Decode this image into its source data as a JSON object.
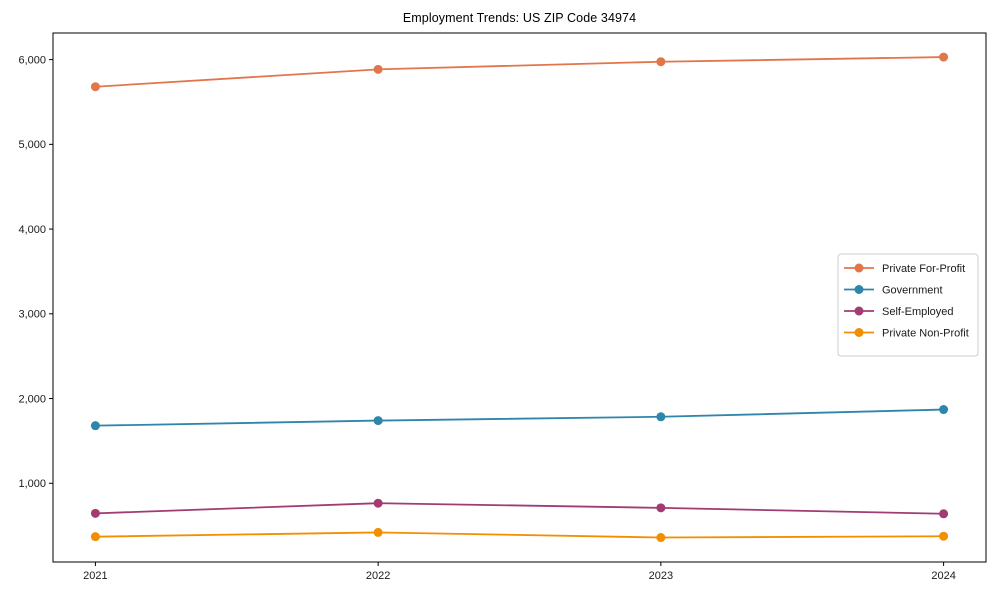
{
  "title": "Employment Trends: US ZIP Code 34974",
  "chart_data": {
    "type": "line",
    "title": "Employment Trends: US ZIP Code 34974",
    "xlabel": "",
    "ylabel": "",
    "x": [
      2021,
      2022,
      2023,
      2024
    ],
    "x_tick_labels": [
      "2021",
      "2022",
      "2023",
      "2024"
    ],
    "y_ticks": [
      1000,
      2000,
      3000,
      4000,
      5000,
      6000
    ],
    "y_tick_labels": [
      "1,000",
      "2,000",
      "3,000",
      "4,000",
      "5,000",
      "6,000"
    ],
    "xlim": [
      2020.85,
      2024.15
    ],
    "ylim": [
      71,
      6314
    ],
    "grid": false,
    "legend_position": "center-right",
    "marker": "circle",
    "series": [
      {
        "name": "Private For-Profit",
        "color": "#E2764B",
        "values": [
          5680,
          5885,
          5975,
          6030
        ]
      },
      {
        "name": "Government",
        "color": "#2E86AB",
        "values": [
          1680,
          1740,
          1785,
          1870
        ]
      },
      {
        "name": "Self-Employed",
        "color": "#A23B72",
        "values": [
          645,
          765,
          710,
          640
        ]
      },
      {
        "name": "Private Non-Profit",
        "color": "#F18F01",
        "values": [
          370,
          420,
          360,
          375
        ]
      }
    ],
    "axis_color": "#000000",
    "tick_label_color": "#1a1a1a",
    "legend_border_color": "#cccccc",
    "legend_bg_color": "#ffffff"
  }
}
